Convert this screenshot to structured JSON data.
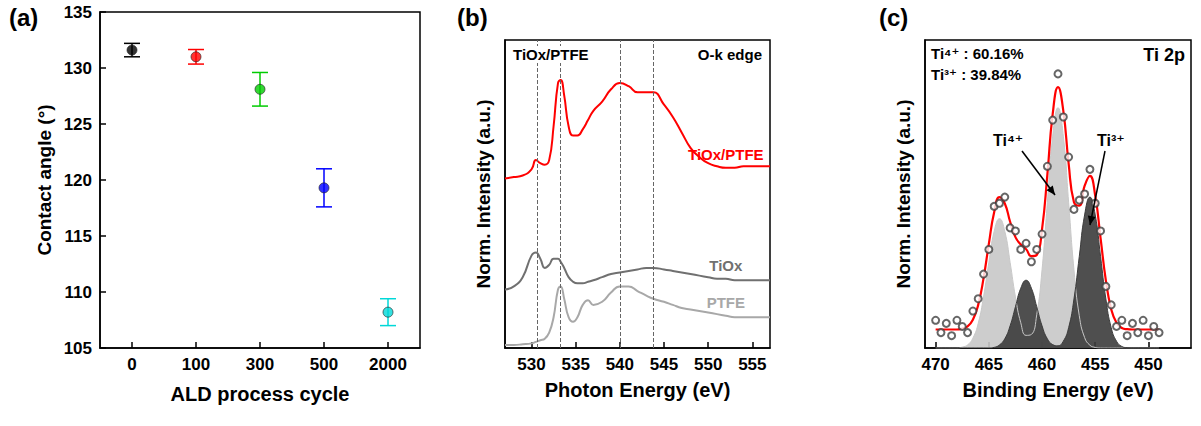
{
  "chart_data": [
    {
      "type": "scatter",
      "panel": "(a)",
      "xlabel": "ALD process cycle",
      "ylabel": "Contact angle (°)",
      "categories": [
        "0",
        "100",
        "300",
        "500",
        "2000"
      ],
      "values": [
        131.6,
        131.0,
        128.1,
        119.3,
        108.2
      ],
      "errors": [
        0.6,
        0.65,
        1.5,
        1.7,
        1.2
      ],
      "colors": [
        "#000000",
        "#ff0000",
        "#00cc00",
        "#0000ff",
        "#00d8d8"
      ],
      "marker": "circle",
      "ylim": [
        105,
        135
      ],
      "yticks": [
        105,
        110,
        115,
        120,
        125,
        130,
        135
      ],
      "grid": false
    },
    {
      "type": "line",
      "panel": "(b)",
      "xlabel": "Photon Energy (eV)",
      "ylabel": "Norm. Intensity (a.u.)",
      "annotations": [
        "TiOx/PTFE",
        "O-k edge"
      ],
      "vlines": [
        530.7,
        533.3,
        540.0,
        543.8
      ],
      "x": [
        527,
        528,
        529,
        530,
        530.5,
        531,
        531.5,
        532,
        532.5,
        533,
        533.3,
        533.7,
        534.2,
        534.7,
        535.2,
        535.8,
        536.4,
        537,
        538,
        539,
        540,
        541,
        542,
        543,
        543.8,
        545,
        546,
        547,
        548,
        549,
        550,
        551,
        552,
        553,
        554,
        555,
        556,
        557
      ],
      "series": [
        {
          "name": "TiOx/PTFE",
          "color": "#ff0000",
          "values": [
            5.5,
            5.55,
            5.6,
            5.8,
            6.1,
            6.0,
            5.95,
            6.1,
            7.2,
            8.6,
            8.7,
            8.2,
            7.2,
            6.9,
            6.9,
            7.1,
            7.4,
            7.7,
            8.0,
            8.4,
            8.6,
            8.5,
            8.3,
            8.3,
            8.3,
            7.9,
            7.5,
            7.0,
            6.5,
            6.2,
            6.0,
            5.9,
            5.85,
            5.85,
            5.9,
            5.9,
            5.9,
            5.9
          ]
        },
        {
          "name": "TiOx",
          "color": "#707070",
          "values": [
            1.9,
            2.0,
            2.3,
            3.0,
            3.1,
            2.9,
            2.6,
            2.7,
            2.9,
            2.9,
            2.8,
            2.6,
            2.3,
            2.15,
            2.1,
            2.1,
            2.15,
            2.2,
            2.3,
            2.4,
            2.45,
            2.5,
            2.55,
            2.6,
            2.6,
            2.55,
            2.5,
            2.45,
            2.4,
            2.35,
            2.3,
            2.25,
            2.25,
            2.2,
            2.2,
            2.2,
            2.2,
            2.2
          ]
        },
        {
          "name": "PTFE",
          "color": "#a8a8a8",
          "values": [
            0.1,
            0.1,
            0.12,
            0.15,
            0.2,
            0.25,
            0.3,
            0.5,
            1.0,
            1.9,
            2.0,
            1.6,
            1.0,
            0.85,
            1.0,
            1.4,
            1.55,
            1.4,
            1.5,
            1.8,
            2.0,
            2.0,
            1.85,
            1.7,
            1.6,
            1.5,
            1.4,
            1.3,
            1.25,
            1.2,
            1.15,
            1.1,
            1.05,
            1.0,
            1.0,
            1.0,
            1.0,
            1.0
          ]
        }
      ],
      "xlim": [
        527,
        557
      ],
      "xticks": [
        530,
        535,
        540,
        545,
        550,
        555
      ],
      "ylim": [
        0,
        10
      ],
      "tick_labels": "x",
      "grid": false
    },
    {
      "type": "line",
      "panel": "(c)",
      "xlabel": "Binding Energy (eV)",
      "ylabel": "Norm. Intensity (a.u.)",
      "annotations": [
        "Ti⁴⁺ : 60.16%",
        "Ti³⁺ : 39.84%",
        "Ti 2p"
      ],
      "x": [
        470,
        469.5,
        469,
        468.5,
        468,
        467.5,
        467,
        466.5,
        466,
        465.5,
        465,
        464.5,
        464,
        463.5,
        463,
        462.5,
        462,
        461.5,
        461,
        460.5,
        460,
        459.5,
        459,
        458.5,
        458,
        457.5,
        457,
        456.5,
        456,
        455.5,
        455,
        454.5,
        454,
        453.5,
        453,
        452.5,
        452,
        451.5,
        451,
        450.5,
        450,
        449.5,
        449
      ],
      "series": [
        {
          "name": "Ti⁴⁺",
          "type": "area",
          "color": "#c8c8c8",
          "values": [
            0,
            0,
            0,
            0,
            0,
            0.03,
            0.1,
            0.32,
            0.8,
            1.66,
            2.78,
            3.79,
            4.2,
            3.79,
            2.78,
            1.66,
            0.82,
            0.41,
            0.44,
            1.08,
            2.54,
            4.73,
            6.88,
            7.8,
            6.88,
            4.73,
            2.54,
            1.05,
            0.34,
            0.09,
            0.02,
            0,
            0,
            0,
            0,
            0,
            0,
            0,
            0,
            0,
            0,
            0,
            0
          ]
        },
        {
          "name": "Ti³⁺",
          "type": "area",
          "color": "#3c3c3c",
          "values": [
            0,
            0,
            0,
            0,
            0,
            0,
            0,
            0,
            0,
            0,
            0,
            0.02,
            0.1,
            0.3,
            0.72,
            1.34,
            1.94,
            2.2,
            1.94,
            1.34,
            0.72,
            0.3,
            0.11,
            0.07,
            0.22,
            0.66,
            1.59,
            2.97,
            4.32,
            4.9,
            4.32,
            2.97,
            1.59,
            0.66,
            0.22,
            0.05,
            0.01,
            0,
            0,
            0,
            0,
            0,
            0
          ]
        },
        {
          "type": "line",
          "color": "#ff0000",
          "values": [
            0.6,
            0.6,
            0.6,
            0.6,
            0.6,
            0.63,
            0.7,
            0.92,
            1.4,
            2.26,
            3.38,
            4.41,
            4.9,
            4.69,
            4.1,
            3.6,
            3.36,
            3.21,
            2.98,
            3.02,
            3.86,
            5.63,
            7.59,
            8.47,
            7.7,
            5.99,
            4.73,
            4.62,
            5.26,
            5.59,
            4.94,
            3.57,
            2.19,
            1.26,
            0.82,
            0.65,
            0.61,
            0.6,
            0.6,
            0.6,
            0.6,
            0.6,
            0.6
          ]
        },
        {
          "type": "scatter",
          "color": "#404040",
          "marker": "open_circle",
          "values": [
            0.9,
            0.5,
            0.8,
            0.4,
            0.9,
            0.7,
            0.5,
            1.2,
            1.6,
            2.4,
            3.2,
            4.6,
            4.7,
            4.9,
            3.9,
            3.8,
            3.2,
            3.4,
            2.8,
            3.2,
            3.7,
            5.9,
            7.4,
            8.9,
            7.5,
            6.2,
            4.5,
            4.8,
            5.0,
            5.8,
            4.7,
            3.8,
            2.0,
            1.4,
            0.7,
            0.9,
            0.4,
            0.8,
            0.5,
            0.9,
            0.4,
            0.7,
            0.5
          ]
        }
      ],
      "xlim": [
        471,
        446
      ],
      "xticks": [
        470,
        465,
        460,
        455,
        450
      ],
      "ylim": [
        0,
        10
      ],
      "tick_labels": "x",
      "grid": false
    }
  ]
}
